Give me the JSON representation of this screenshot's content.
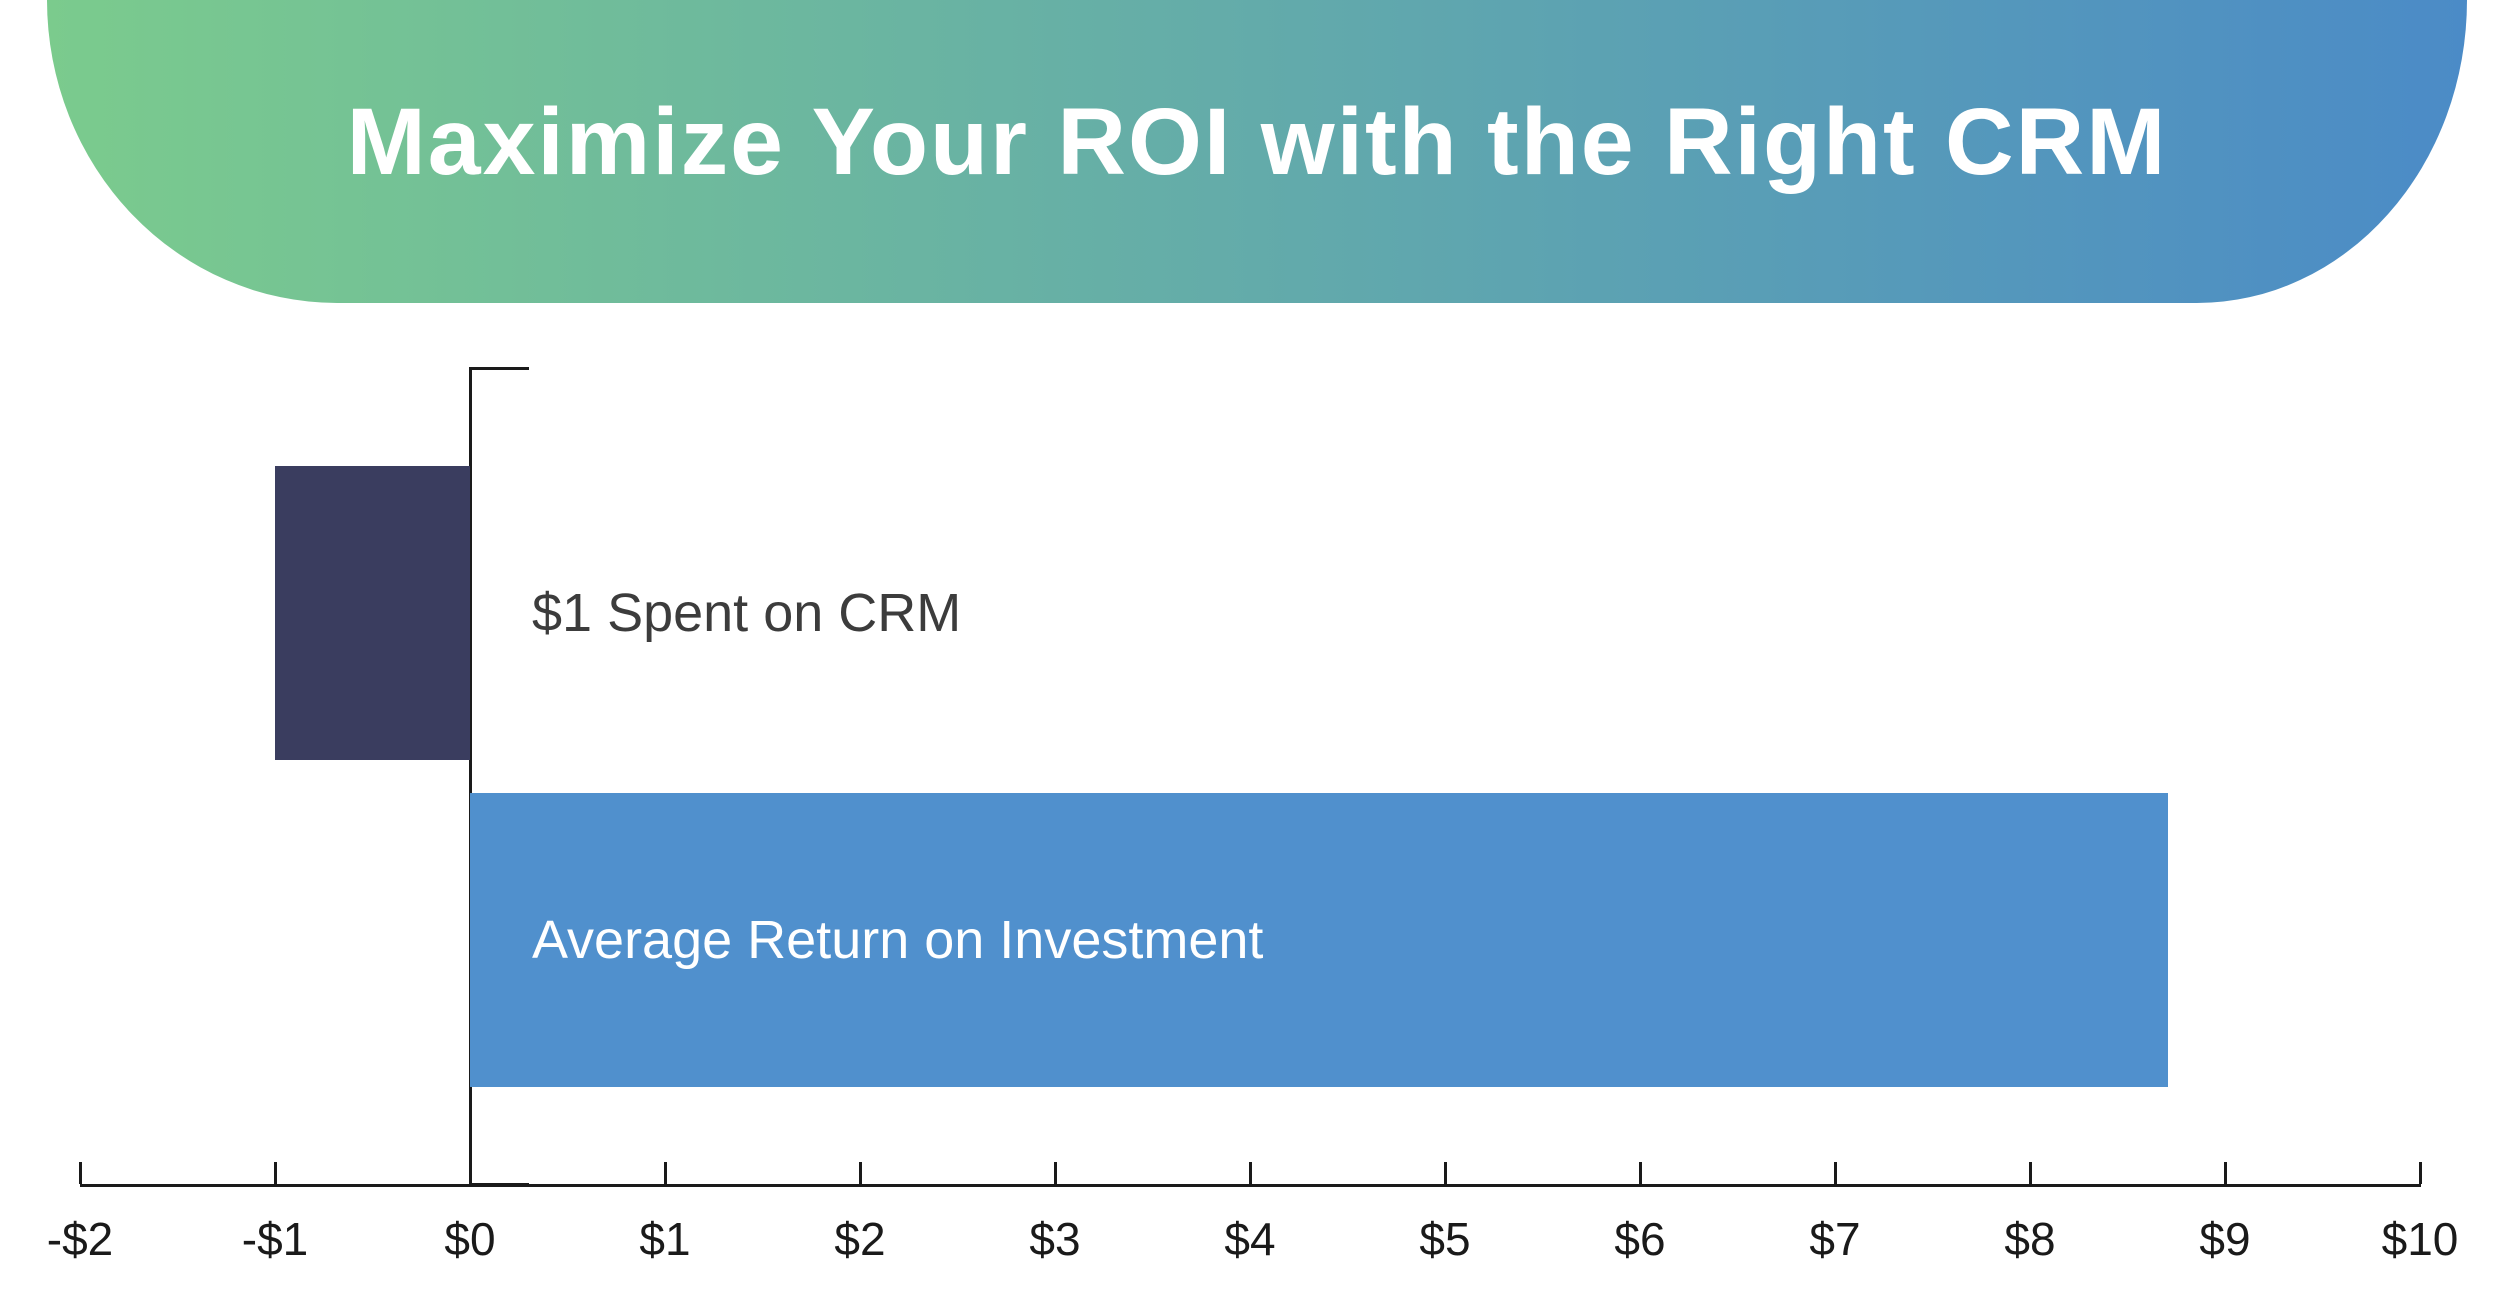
{
  "header": {
    "title": "Maximize Your ROI with the Right CRM",
    "gradient_start": "#7BCB8D",
    "gradient_end": "#4B8BC7",
    "text_color": "#FFFFFF"
  },
  "chart_data": {
    "type": "bar",
    "orientation": "horizontal",
    "title": "Maximize Your ROI with the Right CRM",
    "categories": [
      "$1 Spent on CRM",
      "Average Return on Investment"
    ],
    "values": [
      -1,
      8.71
    ],
    "bar_colors": [
      "#3A3D5F",
      "#5090CD"
    ],
    "bar_label_colors": [
      "#3C3C3C",
      "#FFFFFF"
    ],
    "xlabel": "",
    "ylabel": "",
    "xlim": [
      -2,
      10
    ],
    "tick_values": [
      -2,
      -1,
      0,
      1,
      2,
      3,
      4,
      5,
      6,
      7,
      8,
      9,
      10
    ],
    "tick_labels": [
      "-$2",
      "-$1",
      "$0",
      "$1",
      "$2",
      "$3",
      "$4",
      "$5",
      "$6",
      "$7",
      "$8",
      "$9",
      "$10"
    ],
    "axis_color": "#1A1A1A",
    "grid": false,
    "legend": false
  }
}
